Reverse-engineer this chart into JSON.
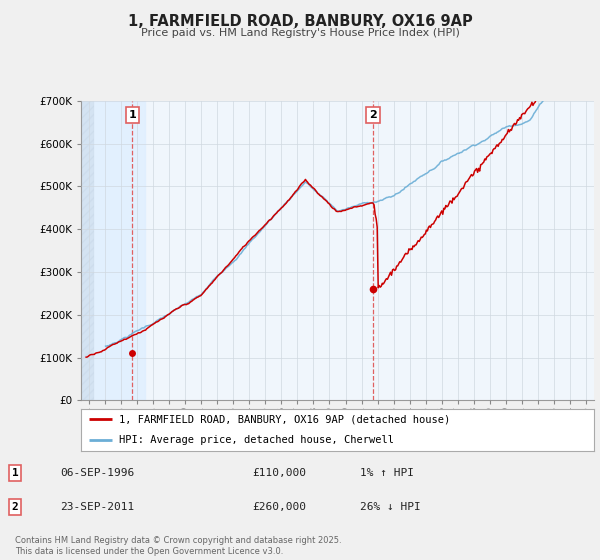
{
  "title": "1, FARMFIELD ROAD, BANBURY, OX16 9AP",
  "subtitle": "Price paid vs. HM Land Registry's House Price Index (HPI)",
  "legend_line1": "1, FARMFIELD ROAD, BANBURY, OX16 9AP (detached house)",
  "legend_line2": "HPI: Average price, detached house, Cherwell",
  "sale1_date": "06-SEP-1996",
  "sale1_price": "£110,000",
  "sale1_hpi": "1% ↑ HPI",
  "sale2_date": "23-SEP-2011",
  "sale2_price": "£260,000",
  "sale2_hpi": "26% ↓ HPI",
  "footnote": "Contains HM Land Registry data © Crown copyright and database right 2025.\nThis data is licensed under the Open Government Licence v3.0.",
  "sale1_year": 1996.7,
  "sale1_value": 110000,
  "sale2_year": 2011.72,
  "sale2_value": 260000,
  "hpi_color": "#6baed6",
  "price_color": "#cc0000",
  "vline_color": "#e06060",
  "bg_left_color": "#ddeeff",
  "background_color": "#f0f0f0",
  "plot_bg_color": "#ffffff",
  "ylim": [
    0,
    700000
  ],
  "xlim_start": 1993.5,
  "xlim_end": 2025.5
}
